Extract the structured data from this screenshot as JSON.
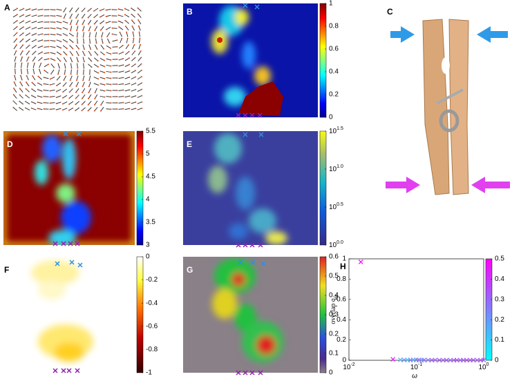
{
  "panel_labels": [
    "A",
    "B",
    "C",
    "D",
    "E",
    "F",
    "G",
    "H"
  ],
  "colorbars": {
    "B": {
      "lim": [
        0,
        1
      ],
      "ticks": [
        0,
        0.2,
        0.4,
        0.6,
        0.8,
        1
      ]
    },
    "D": {
      "lim": [
        3,
        5.5
      ],
      "ticks": [
        3,
        3.5,
        4,
        4.5,
        5,
        5.5
      ]
    },
    "E": {
      "lim": [
        1,
        31.62
      ],
      "log_scale": true,
      "ticks": [
        {
          "value": 1,
          "label": "10",
          "exponent": "0.0"
        },
        {
          "value": 3.162,
          "label": "10",
          "exponent": "0.5"
        },
        {
          "value": 10,
          "label": "10",
          "exponent": "1.0"
        },
        {
          "value": 31.62,
          "label": "10",
          "exponent": "1.5"
        }
      ]
    },
    "F": {
      "lim": [
        -1,
        0
      ],
      "ticks": [
        0,
        -0.2,
        -0.4,
        -0.6,
        -0.8,
        -1
      ]
    },
    "G": {
      "lim": [
        0,
        0.6
      ],
      "ticks": [
        0,
        0.1,
        0.2,
        0.3,
        0.4,
        0.5,
        0.6
      ]
    }
  },
  "chart_data": {
    "type": "scatter",
    "xlabel": "ω",
    "ylabel": "overlap q",
    "ylabel_sub": "ω",
    "xlim": [
      0.01,
      1
    ],
    "log_x": true,
    "xticks": [
      {
        "value": 0.01,
        "label": "10",
        "exponent": "-2"
      },
      {
        "value": 0.1,
        "label": "10",
        "exponent": "-1"
      },
      {
        "value": 1,
        "label": "10",
        "exponent": "0"
      }
    ],
    "ylim": [
      0,
      1
    ],
    "yticks": [
      0,
      0.2,
      0.4,
      0.6,
      0.8,
      1
    ],
    "clim": [
      0,
      0.5
    ],
    "cticks": [
      0,
      0.1,
      0.2,
      0.3,
      0.4,
      0.5
    ],
    "series": [
      {
        "x": [
          0.015,
          0.045,
          0.058,
          0.066,
          0.074,
          0.082,
          0.09,
          0.1,
          0.11,
          0.12,
          0.13,
          0.15,
          0.17,
          0.19,
          0.22,
          0.25,
          0.28,
          0.32,
          0.36,
          0.4,
          0.45,
          0.5,
          0.56,
          0.63,
          0.7,
          0.8,
          0.9,
          1.0
        ],
        "values": [
          0.97,
          0.01,
          0.005,
          0.003,
          0.003,
          0.002,
          0.004,
          0.002,
          0.003,
          0.002,
          0.002,
          0.002,
          0.001,
          0.002,
          0.001,
          0.001,
          0.001,
          0.001,
          0.001,
          0.001,
          0.001,
          0.001,
          0.001,
          0.001,
          0.001,
          0.001,
          0.001,
          0.001
        ],
        "color_values": [
          0.5,
          0.45,
          0.15,
          0.2,
          0.12,
          0.25,
          0.18,
          0.22,
          0.3,
          0.2,
          0.28,
          0.25,
          0.32,
          0.3,
          0.35,
          0.3,
          0.33,
          0.28,
          0.32,
          0.35,
          0.3,
          0.33,
          0.36,
          0.32,
          0.35,
          0.3,
          0.34,
          0.32
        ]
      }
    ]
  }
}
